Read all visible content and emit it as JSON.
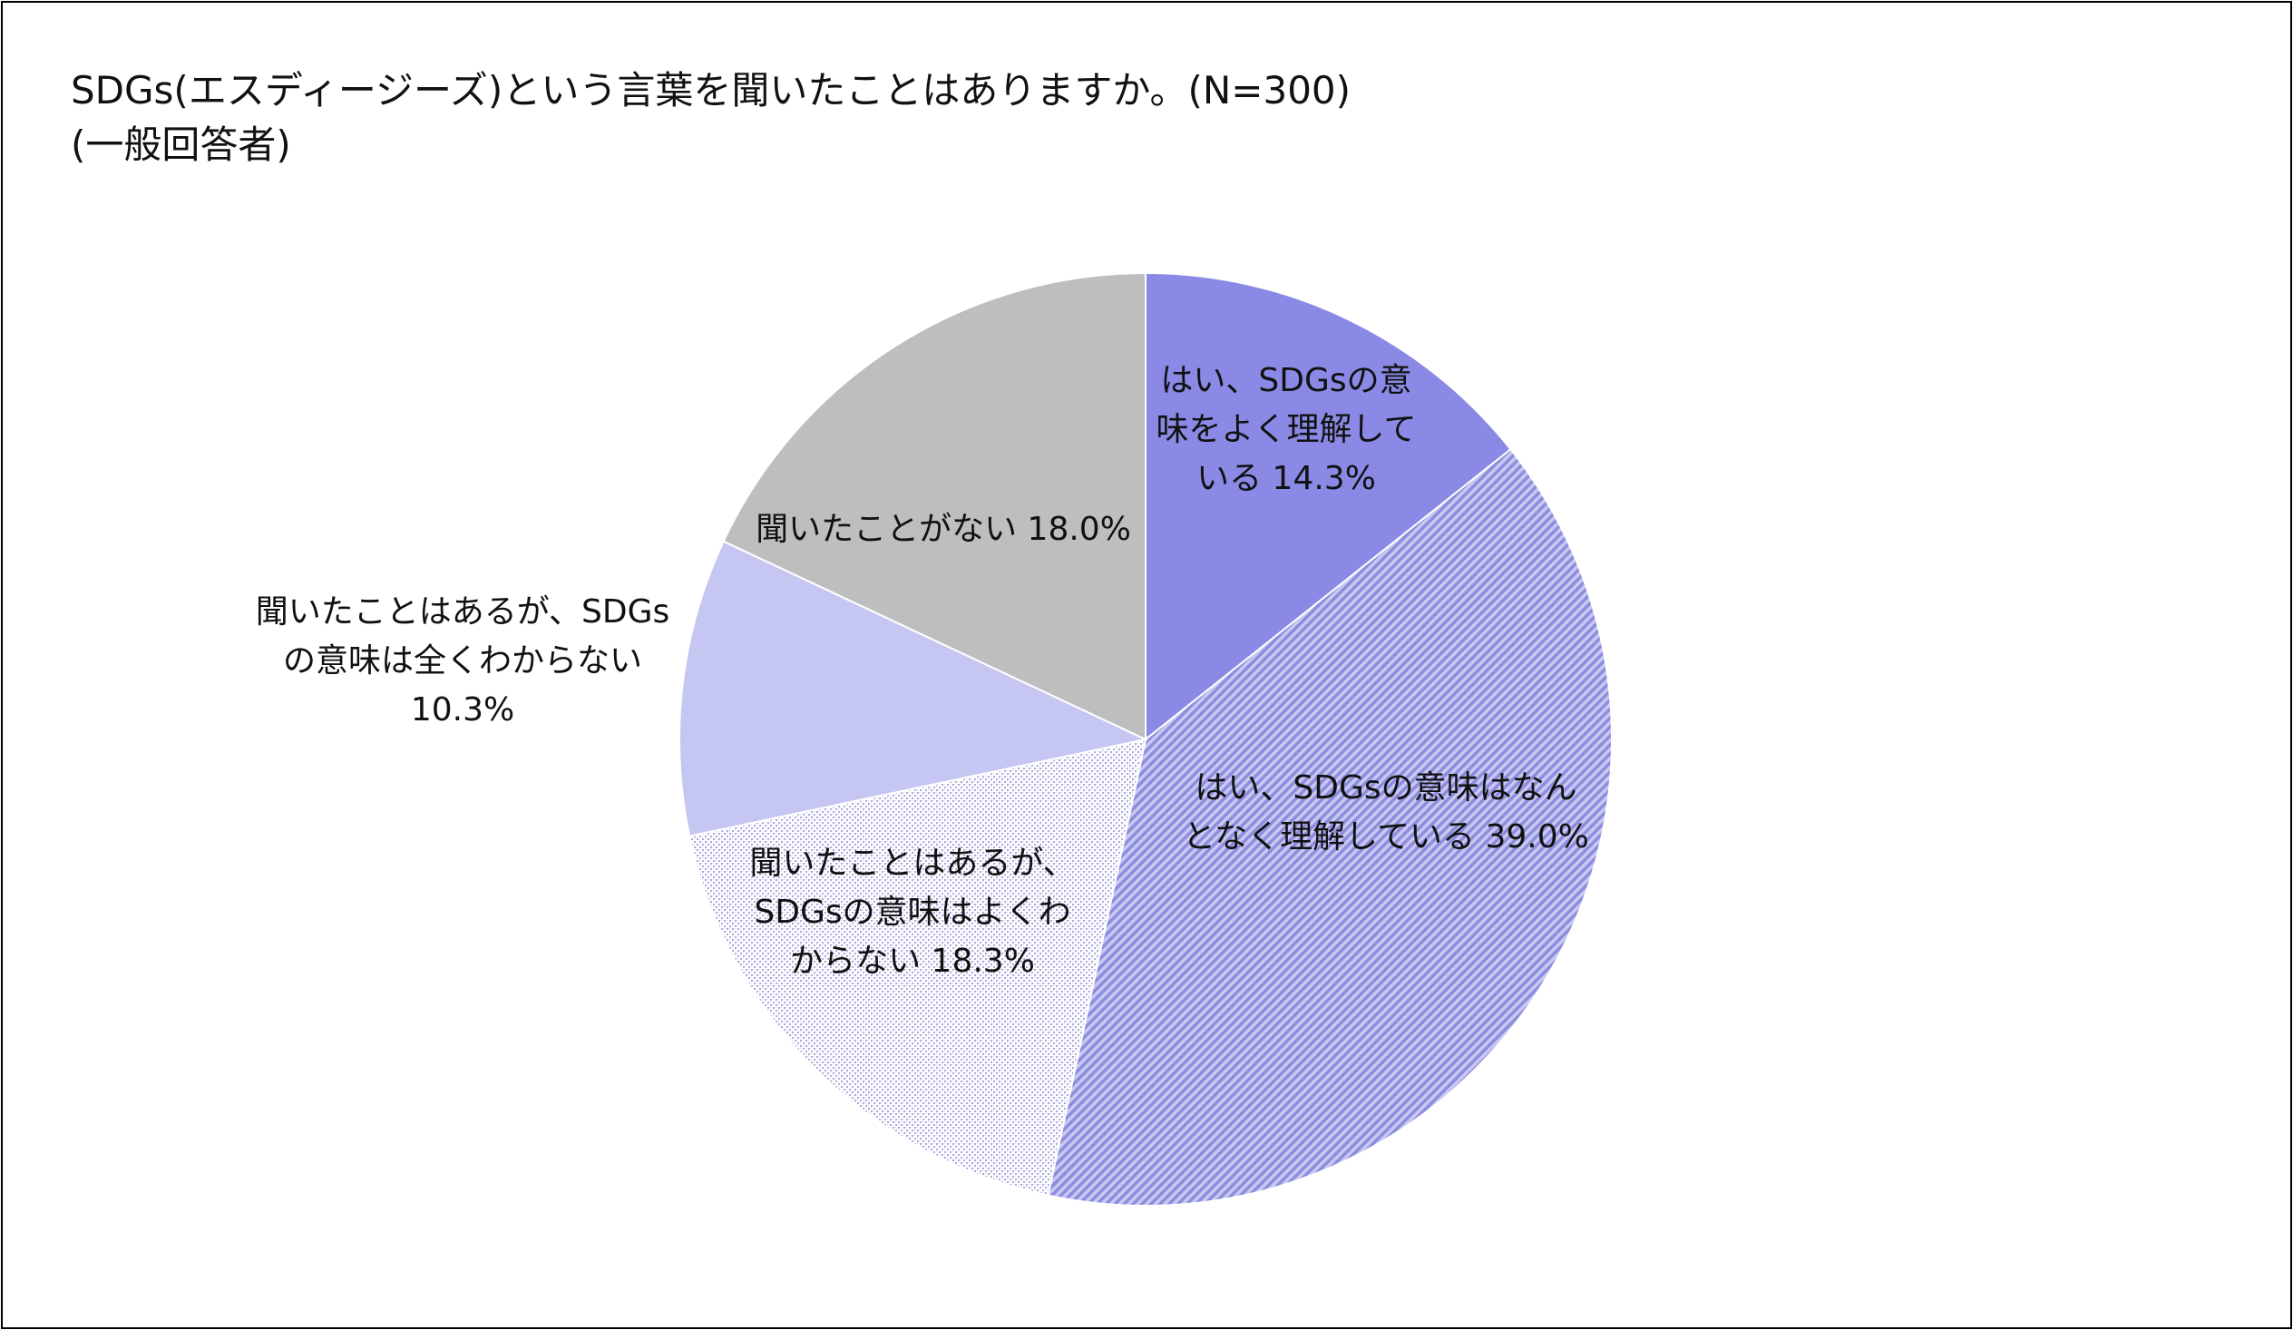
{
  "chart_data": {
    "type": "pie",
    "title": "SDGs(エスディージーズ)という言葉を聞いたことはありますか。(N=300)",
    "subtitle": "(一般回答者)",
    "slices": [
      {
        "lines": [
          "はい、SDGsの意",
          "味をよく理解して",
          "いる 14.3%"
        ],
        "value": 14.3,
        "color": "#8a8ae6",
        "pattern": "solid"
      },
      {
        "lines": [
          "はい、SDGsの意味はなん",
          "となく理解している 39.0%"
        ],
        "value": 39.0,
        "color": "#9a9ae8",
        "pattern": "diagonal"
      },
      {
        "lines": [
          "聞いたことはあるが、",
          "SDGsの意味はよくわ",
          "からない 18.3%"
        ],
        "value": 18.3,
        "color": "#c4c4ee",
        "pattern": "dots"
      },
      {
        "lines": [
          "聞いたことはあるが、SDGs",
          "の意味は全くわからない",
          "10.3%"
        ],
        "value": 10.3,
        "color": "#c6c6f2",
        "pattern": "solid"
      },
      {
        "lines": [
          "聞いたことがない 18.0%"
        ],
        "value": 18.0,
        "color": "#bebebe",
        "pattern": "solid"
      }
    ]
  }
}
